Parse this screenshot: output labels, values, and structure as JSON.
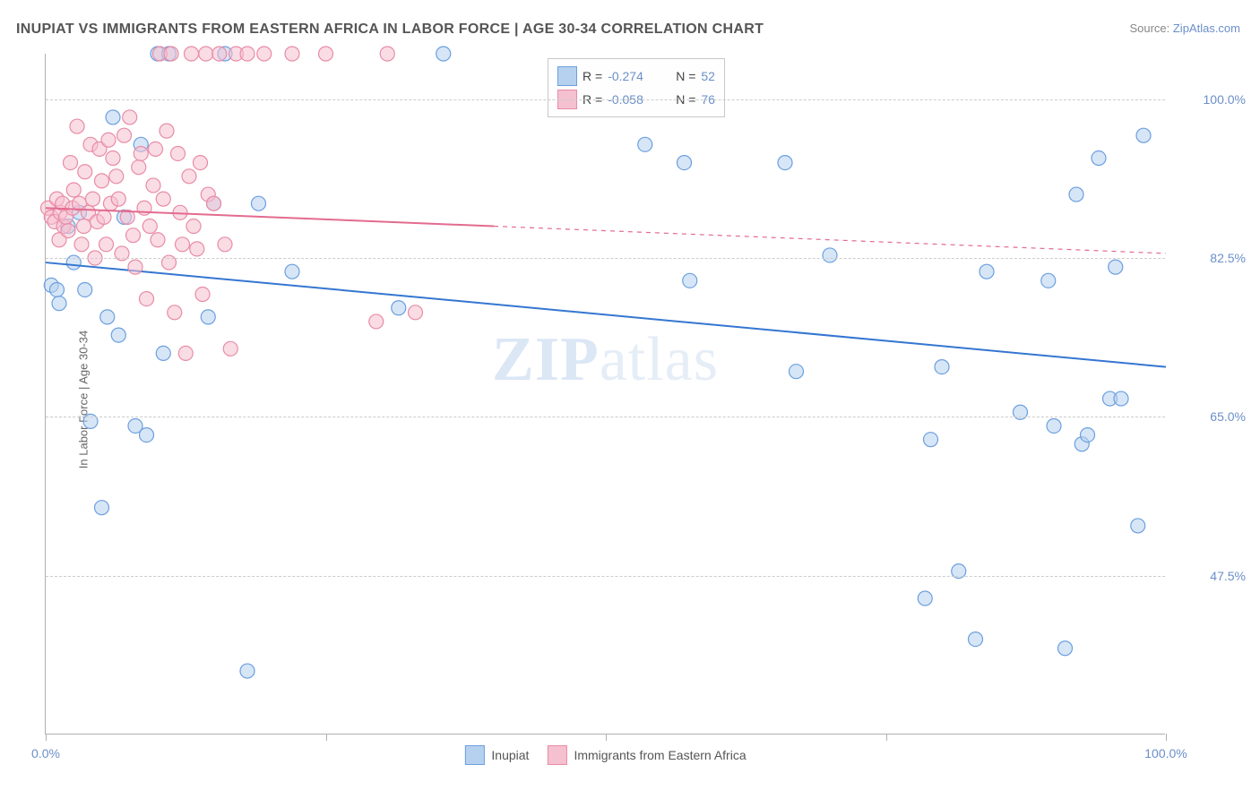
{
  "title": "INUPIAT VS IMMIGRANTS FROM EASTERN AFRICA IN LABOR FORCE | AGE 30-34 CORRELATION CHART",
  "source_prefix": "Source: ",
  "source_link": "ZipAtlas.com",
  "ylabel": "In Labor Force | Age 30-34",
  "watermark_zip": "ZIP",
  "watermark_atlas": "atlas",
  "chart": {
    "type": "scatter",
    "xlim": [
      0,
      100
    ],
    "ylim": [
      30,
      105
    ],
    "ytick_values": [
      47.5,
      65.0,
      82.5,
      100.0
    ],
    "ytick_labels": [
      "47.5%",
      "65.0%",
      "82.5%",
      "100.0%"
    ],
    "xtick_values": [
      0,
      25,
      50,
      75,
      100
    ],
    "xtick_labels": [
      "0.0%",
      "",
      "",
      "",
      "100.0%"
    ],
    "background_color": "#ffffff",
    "grid_color": "#cccccc",
    "axis_color": "#b0b0b0",
    "marker_radius": 8,
    "marker_opacity": 0.55,
    "line_width": 2,
    "series": [
      {
        "name": "Inupiat",
        "fill": "#b6d1ef",
        "stroke": "#6b9fe0",
        "line_color": "#3476d1",
        "R": "-0.274",
        "N": "52",
        "trend": {
          "x1": 0,
          "y1": 82.0,
          "x2": 100,
          "y2": 70.5,
          "solid_until_x": 100
        },
        "points": [
          [
            0.5,
            79.5
          ],
          [
            1.0,
            79.0
          ],
          [
            1.2,
            77.5
          ],
          [
            2.0,
            86.0
          ],
          [
            2.5,
            82.0
          ],
          [
            3.0,
            87.5
          ],
          [
            3.5,
            79.0
          ],
          [
            4.0,
            64.5
          ],
          [
            5.0,
            55.0
          ],
          [
            5.5,
            76.0
          ],
          [
            6.0,
            98.0
          ],
          [
            6.5,
            74.0
          ],
          [
            7.0,
            87.0
          ],
          [
            8.0,
            64.0
          ],
          [
            8.5,
            95.0
          ],
          [
            9.0,
            63.0
          ],
          [
            10.0,
            105.0
          ],
          [
            10.5,
            72.0
          ],
          [
            11.0,
            105.0
          ],
          [
            14.5,
            76.0
          ],
          [
            15.0,
            88.5
          ],
          [
            16.0,
            105.0
          ],
          [
            18.0,
            37.0
          ],
          [
            19.0,
            88.5
          ],
          [
            22.0,
            81.0
          ],
          [
            31.5,
            77.0
          ],
          [
            35.5,
            105.0
          ],
          [
            53.5,
            95.0
          ],
          [
            57.0,
            93.0
          ],
          [
            57.5,
            80.0
          ],
          [
            66.0,
            93.0
          ],
          [
            67.0,
            70.0
          ],
          [
            70.0,
            82.8
          ],
          [
            78.5,
            45.0
          ],
          [
            79.0,
            62.5
          ],
          [
            80.0,
            70.5
          ],
          [
            81.5,
            48.0
          ],
          [
            83.0,
            40.5
          ],
          [
            84.0,
            81.0
          ],
          [
            87.0,
            65.5
          ],
          [
            89.5,
            80.0
          ],
          [
            90.0,
            64.0
          ],
          [
            91.0,
            39.5
          ],
          [
            92.0,
            89.5
          ],
          [
            92.5,
            62.0
          ],
          [
            93.0,
            63.0
          ],
          [
            94.0,
            93.5
          ],
          [
            95.0,
            67.0
          ],
          [
            95.5,
            81.5
          ],
          [
            96.0,
            67.0
          ],
          [
            97.5,
            53.0
          ],
          [
            98.0,
            96.0
          ]
        ]
      },
      {
        "name": "Immigrants from Eastern Africa",
        "fill": "#f5c0cf",
        "stroke": "#e88ca6",
        "line_color": "#e36b8f",
        "R": "-0.058",
        "N": "76",
        "trend": {
          "x1": 0,
          "y1": 88.0,
          "x2": 100,
          "y2": 83.0,
          "solid_until_x": 40
        },
        "points": [
          [
            0.2,
            88.0
          ],
          [
            0.5,
            87.0
          ],
          [
            0.8,
            86.5
          ],
          [
            1.0,
            89.0
          ],
          [
            1.2,
            84.5
          ],
          [
            1.3,
            87.5
          ],
          [
            1.5,
            88.5
          ],
          [
            1.6,
            86.0
          ],
          [
            1.8,
            87.0
          ],
          [
            2.0,
            85.5
          ],
          [
            2.2,
            93.0
          ],
          [
            2.4,
            88.0
          ],
          [
            2.5,
            90.0
          ],
          [
            2.8,
            97.0
          ],
          [
            3.0,
            88.5
          ],
          [
            3.2,
            84.0
          ],
          [
            3.4,
            86.0
          ],
          [
            3.5,
            92.0
          ],
          [
            3.8,
            87.5
          ],
          [
            4.0,
            95.0
          ],
          [
            4.2,
            89.0
          ],
          [
            4.4,
            82.5
          ],
          [
            4.6,
            86.5
          ],
          [
            4.8,
            94.5
          ],
          [
            5.0,
            91.0
          ],
          [
            5.2,
            87.0
          ],
          [
            5.4,
            84.0
          ],
          [
            5.6,
            95.5
          ],
          [
            5.8,
            88.5
          ],
          [
            6.0,
            93.5
          ],
          [
            6.3,
            91.5
          ],
          [
            6.5,
            89.0
          ],
          [
            6.8,
            83.0
          ],
          [
            7.0,
            96.0
          ],
          [
            7.3,
            87.0
          ],
          [
            7.5,
            98.0
          ],
          [
            7.8,
            85.0
          ],
          [
            8.0,
            81.5
          ],
          [
            8.3,
            92.5
          ],
          [
            8.5,
            94.0
          ],
          [
            8.8,
            88.0
          ],
          [
            9.0,
            78.0
          ],
          [
            9.3,
            86.0
          ],
          [
            9.6,
            90.5
          ],
          [
            9.8,
            94.5
          ],
          [
            10.0,
            84.5
          ],
          [
            10.2,
            105.0
          ],
          [
            10.5,
            89.0
          ],
          [
            10.8,
            96.5
          ],
          [
            11.0,
            82.0
          ],
          [
            11.2,
            105.0
          ],
          [
            11.5,
            76.5
          ],
          [
            11.8,
            94.0
          ],
          [
            12.0,
            87.5
          ],
          [
            12.2,
            84.0
          ],
          [
            12.5,
            72.0
          ],
          [
            12.8,
            91.5
          ],
          [
            13.0,
            105.0
          ],
          [
            13.2,
            86.0
          ],
          [
            13.5,
            83.5
          ],
          [
            13.8,
            93.0
          ],
          [
            14.0,
            78.5
          ],
          [
            14.3,
            105.0
          ],
          [
            14.5,
            89.5
          ],
          [
            15.0,
            88.5
          ],
          [
            15.5,
            105.0
          ],
          [
            16.0,
            84.0
          ],
          [
            16.5,
            72.5
          ],
          [
            17.0,
            105.0
          ],
          [
            18.0,
            105.0
          ],
          [
            19.5,
            105.0
          ],
          [
            22.0,
            105.0
          ],
          [
            25.0,
            105.0
          ],
          [
            29.5,
            75.5
          ],
          [
            30.5,
            105.0
          ],
          [
            33.0,
            76.5
          ]
        ]
      }
    ]
  },
  "legend_top": {
    "rows": [
      {
        "swatch_fill": "#b6d1ef",
        "swatch_stroke": "#6b9fe0",
        "R_label": "R =",
        "R_value": "-0.274",
        "N_label": "N =",
        "N_value": "52"
      },
      {
        "swatch_fill": "#f5c0cf",
        "swatch_stroke": "#e88ca6",
        "R_label": "R =",
        "R_value": "-0.058",
        "N_label": "N =",
        "N_value": "76"
      }
    ]
  },
  "legend_bottom": {
    "items": [
      {
        "swatch_fill": "#b6d1ef",
        "swatch_stroke": "#6b9fe0",
        "label": "Inupiat"
      },
      {
        "swatch_fill": "#f5c0cf",
        "swatch_stroke": "#e88ca6",
        "label": "Immigrants from Eastern Africa"
      }
    ]
  }
}
